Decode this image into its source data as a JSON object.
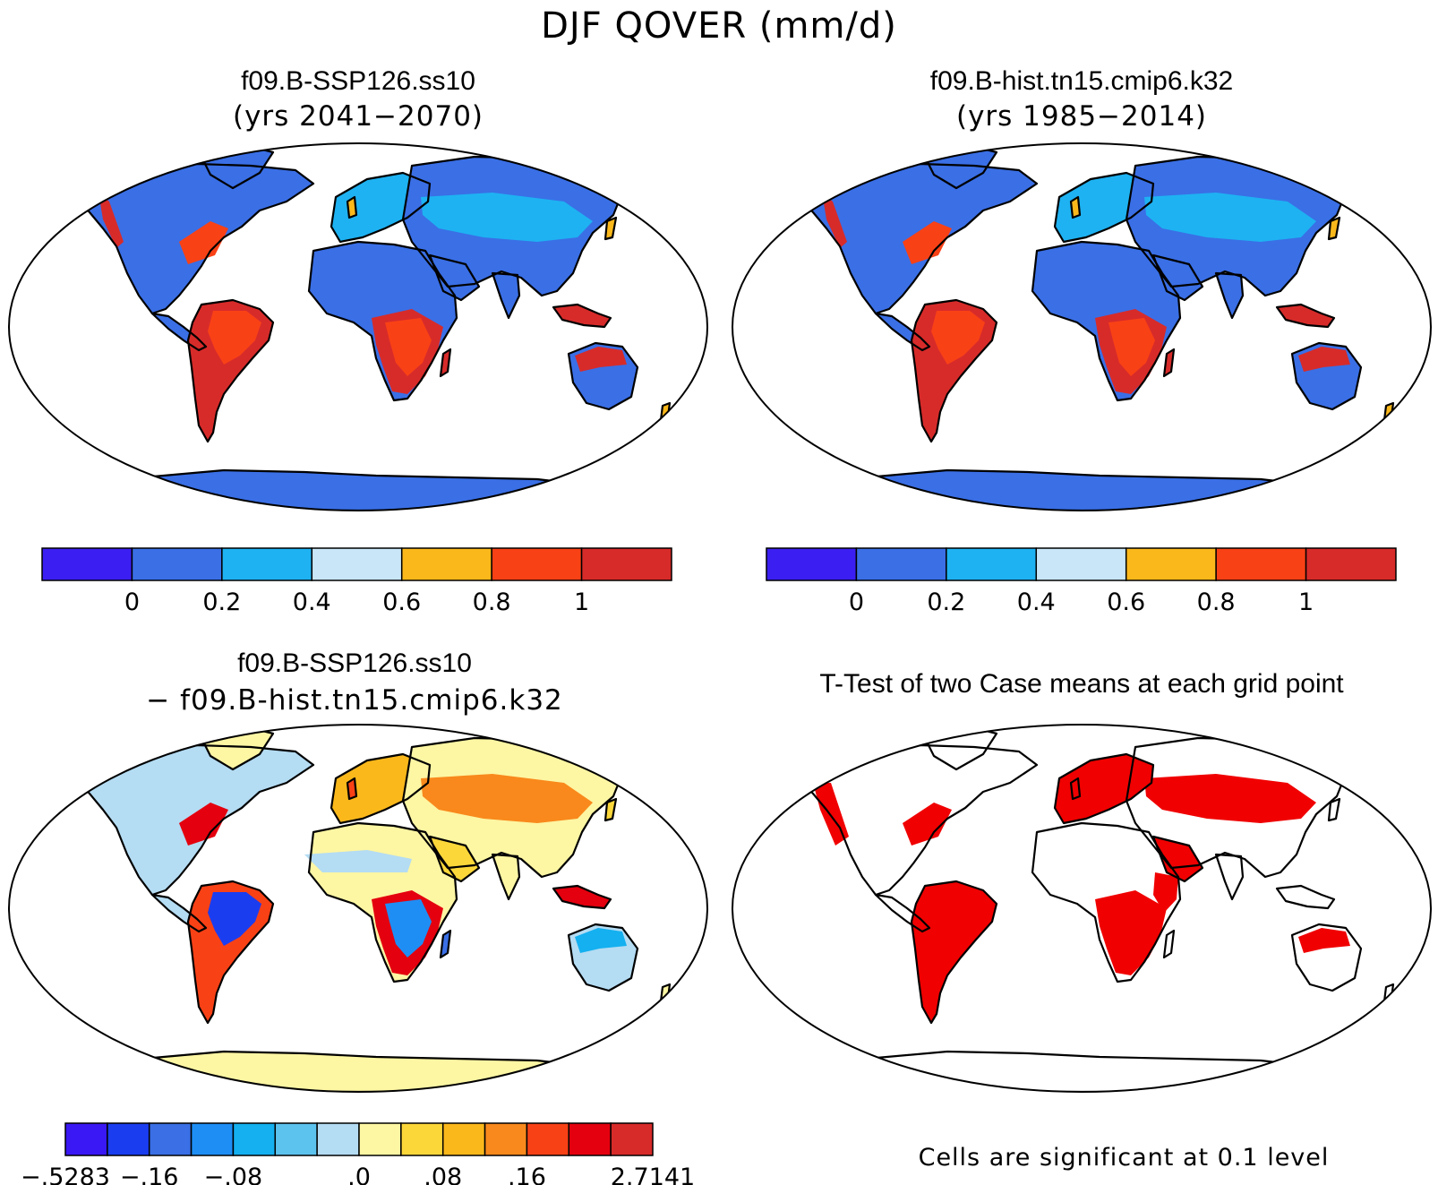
{
  "figure": {
    "title": "DJF QOVER (mm/d)"
  },
  "colors": {
    "seq": [
      "#3b1ff2",
      "#3a6fe6",
      "#1eb2f2",
      "#c8e6f7",
      "#fbb81b",
      "#f94116",
      "#d72b2a"
    ],
    "div": [
      "#3a18f5",
      "#1b3df0",
      "#3a6fe6",
      "#1e8ef5",
      "#14b0f0",
      "#5cc3ee",
      "#b4dcf3",
      "#fdf6a3",
      "#fcd73a",
      "#fbb81b",
      "#f9891c",
      "#f94116",
      "#e4000e",
      "#d72b2a"
    ],
    "sig": "#f00000"
  },
  "panels": [
    {
      "title": "f09.B-SSP126.ss10",
      "subtitle": "(yrs 2041−2070)",
      "type": "field",
      "colorbar": {
        "ticks": [
          "0",
          "0.2",
          "0.4",
          "0.6",
          "0.8",
          "1"
        ]
      },
      "land": {
        "default": 1,
        "n_america_west": 6,
        "n_america_east": 5,
        "s_america": 6,
        "s_america_core": 5,
        "africa_south": 6,
        "africa_core": 5,
        "indonesia": 6,
        "australia_north": 6,
        "europe": 2,
        "asia_band": 2
      }
    },
    {
      "title": "f09.B-hist.tn15.cmip6.k32",
      "subtitle": "(yrs 1985−2014)",
      "type": "field",
      "colorbar": {
        "ticks": [
          "0",
          "0.2",
          "0.4",
          "0.6",
          "0.8",
          "1"
        ]
      },
      "land": {
        "default": 1,
        "n_america_west": 6,
        "n_america_east": 5,
        "s_america": 6,
        "s_america_core": 5,
        "africa_south": 6,
        "africa_core": 5,
        "indonesia": 6,
        "australia_north": 6,
        "europe": 2,
        "asia_band": 2
      }
    },
    {
      "title": "f09.B-SSP126.ss10",
      "subtitle": "− f09.B-hist.tn15.cmip6.k32",
      "type": "difference",
      "colorbar": {
        "ticks": [
          "−.5283",
          "−.16",
          "−.08",
          ".0",
          ".08",
          ".16",
          "2.7141"
        ]
      }
    },
    {
      "title": "T-Test of two Case means at each grid point",
      "subtitle": "",
      "type": "significance",
      "note": "Cells are significant at 0.1 level"
    }
  ]
}
